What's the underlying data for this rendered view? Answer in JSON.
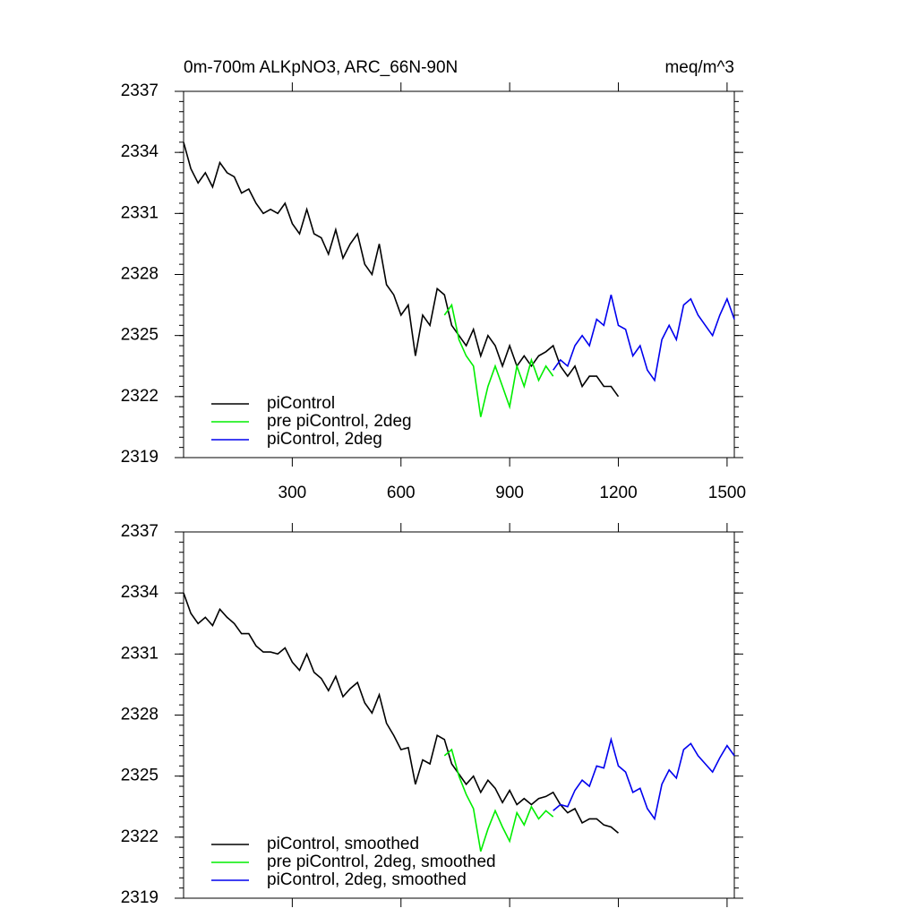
{
  "chart_data": [
    {
      "type": "line",
      "title": "0m-700m ALKpNO3, ARC_66N-90N",
      "units": "meq/m^3",
      "xlim": [
        0,
        1520
      ],
      "xticks": [
        300,
        600,
        900,
        1200,
        1500
      ],
      "ylim": [
        2319,
        2337
      ],
      "yticks": [
        2319,
        2322,
        2325,
        2328,
        2331,
        2334,
        2337
      ],
      "series": [
        {
          "name": "piControl",
          "color": "#000000",
          "x": [
            0,
            20,
            40,
            60,
            80,
            100,
            120,
            140,
            160,
            180,
            200,
            220,
            240,
            260,
            280,
            300,
            320,
            340,
            360,
            380,
            400,
            420,
            440,
            460,
            480,
            500,
            520,
            540,
            560,
            580,
            600,
            620,
            640,
            660,
            680,
            700,
            720,
            740,
            760,
            780,
            800,
            820,
            840,
            860,
            880,
            900,
            920,
            940,
            960,
            980,
            1000,
            1020,
            1040,
            1060,
            1080,
            1100,
            1120,
            1140,
            1160,
            1180,
            1200
          ],
          "values": [
            2334.5,
            2333.2,
            2332.5,
            2333.0,
            2332.3,
            2333.5,
            2333.0,
            2332.8,
            2332.0,
            2332.2,
            2331.5,
            2331.0,
            2331.2,
            2331.0,
            2331.5,
            2330.5,
            2330.0,
            2331.2,
            2330.0,
            2329.8,
            2329.0,
            2330.2,
            2328.8,
            2329.5,
            2330.0,
            2328.5,
            2328.0,
            2329.5,
            2327.5,
            2327.0,
            2326.0,
            2326.5,
            2324.0,
            2326.0,
            2325.5,
            2327.3,
            2327.0,
            2325.5,
            2325.0,
            2324.5,
            2325.3,
            2324.0,
            2325.0,
            2324.5,
            2323.5,
            2324.5,
            2323.5,
            2324.0,
            2323.5,
            2324.0,
            2324.2,
            2324.5,
            2323.5,
            2323.0,
            2323.5,
            2322.5,
            2323.0,
            2323.0,
            2322.5,
            2322.5,
            2322.0
          ]
        },
        {
          "name": "pre piControl, 2deg",
          "color": "#00ee00",
          "x": [
            720,
            740,
            760,
            780,
            800,
            820,
            840,
            860,
            880,
            900,
            920,
            940,
            960,
            980,
            1000,
            1020
          ],
          "values": [
            2326.0,
            2326.5,
            2324.8,
            2324.0,
            2323.5,
            2321.0,
            2322.5,
            2323.5,
            2322.5,
            2321.5,
            2323.5,
            2322.5,
            2323.8,
            2322.8,
            2323.5,
            2323.0
          ]
        },
        {
          "name": "piControl, 2deg",
          "color": "#0000ee",
          "x": [
            1020,
            1040,
            1060,
            1080,
            1100,
            1120,
            1140,
            1160,
            1180,
            1200,
            1220,
            1240,
            1260,
            1280,
            1300,
            1320,
            1340,
            1360,
            1380,
            1400,
            1420,
            1440,
            1460,
            1480,
            1500,
            1520
          ],
          "values": [
            2323.3,
            2323.8,
            2323.5,
            2324.5,
            2325.0,
            2324.5,
            2325.8,
            2325.5,
            2327.0,
            2325.5,
            2325.3,
            2324.0,
            2324.5,
            2323.3,
            2322.8,
            2324.8,
            2325.5,
            2324.8,
            2326.5,
            2326.8,
            2326.0,
            2325.5,
            2325.0,
            2326.0,
            2326.8,
            2325.8
          ]
        }
      ]
    },
    {
      "type": "line",
      "xlim": [
        0,
        1520
      ],
      "ylim": [
        2319,
        2337
      ],
      "yticks": [
        2319,
        2322,
        2325,
        2328,
        2331,
        2334,
        2337
      ],
      "series": [
        {
          "name": "piControl, smoothed",
          "color": "#000000",
          "x": [
            0,
            20,
            40,
            60,
            80,
            100,
            120,
            140,
            160,
            180,
            200,
            220,
            240,
            260,
            280,
            300,
            320,
            340,
            360,
            380,
            400,
            420,
            440,
            460,
            480,
            500,
            520,
            540,
            560,
            580,
            600,
            620,
            640,
            660,
            680,
            700,
            720,
            740,
            760,
            780,
            800,
            820,
            840,
            860,
            880,
            900,
            920,
            940,
            960,
            980,
            1000,
            1020,
            1040,
            1060,
            1080,
            1100,
            1120,
            1140,
            1160,
            1180,
            1200
          ],
          "values": [
            2334.0,
            2333.0,
            2332.5,
            2332.8,
            2332.4,
            2333.2,
            2332.8,
            2332.5,
            2332.0,
            2332.0,
            2331.4,
            2331.1,
            2331.1,
            2331.0,
            2331.3,
            2330.6,
            2330.2,
            2331.0,
            2330.1,
            2329.8,
            2329.2,
            2329.9,
            2328.9,
            2329.3,
            2329.6,
            2328.6,
            2328.1,
            2329.0,
            2327.6,
            2327.0,
            2326.3,
            2326.4,
            2324.6,
            2325.8,
            2325.6,
            2327.0,
            2326.8,
            2325.6,
            2325.1,
            2324.6,
            2325.0,
            2324.2,
            2324.8,
            2324.4,
            2323.7,
            2324.3,
            2323.6,
            2323.9,
            2323.6,
            2323.9,
            2324.0,
            2324.2,
            2323.6,
            2323.2,
            2323.4,
            2322.7,
            2322.9,
            2322.9,
            2322.6,
            2322.5,
            2322.2
          ]
        },
        {
          "name": "pre piControl, 2deg, smoothed",
          "color": "#00ee00",
          "x": [
            720,
            740,
            760,
            780,
            800,
            820,
            840,
            860,
            880,
            900,
            920,
            940,
            960,
            980,
            1000,
            1020
          ],
          "values": [
            2326.0,
            2326.3,
            2325.0,
            2324.1,
            2323.4,
            2321.3,
            2322.4,
            2323.3,
            2322.5,
            2321.8,
            2323.2,
            2322.6,
            2323.5,
            2322.9,
            2323.3,
            2323.0
          ]
        },
        {
          "name": "piControl, 2deg, smoothed",
          "color": "#0000ee",
          "x": [
            1020,
            1040,
            1060,
            1080,
            1100,
            1120,
            1140,
            1160,
            1180,
            1200,
            1220,
            1240,
            1260,
            1280,
            1300,
            1320,
            1340,
            1360,
            1380,
            1400,
            1420,
            1440,
            1460,
            1480,
            1500,
            1520
          ],
          "values": [
            2323.3,
            2323.6,
            2323.5,
            2324.3,
            2324.8,
            2324.5,
            2325.5,
            2325.4,
            2326.8,
            2325.5,
            2325.2,
            2324.2,
            2324.4,
            2323.4,
            2322.9,
            2324.6,
            2325.3,
            2324.9,
            2326.3,
            2326.6,
            2326.0,
            2325.6,
            2325.2,
            2325.9,
            2326.5,
            2326.0
          ]
        }
      ]
    }
  ]
}
